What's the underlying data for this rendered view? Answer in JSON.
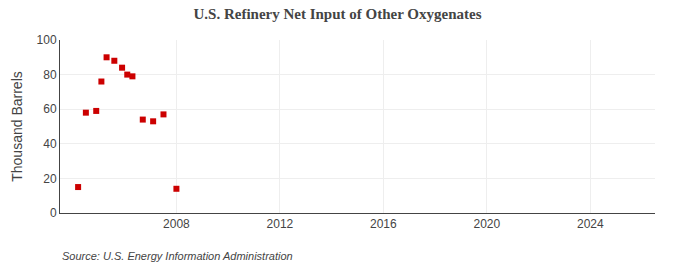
{
  "chart_data": {
    "type": "scatter",
    "title": "U.S. Refinery Net Input of Other Oxygenates",
    "ylabel": "Thousand Barrels",
    "annotations": [
      "Source: U.S. Energy Information Administration"
    ],
    "x": [
      2004.2,
      2004.5,
      2004.9,
      2005.1,
      2005.3,
      2005.6,
      2005.9,
      2006.1,
      2006.3,
      2006.7,
      2007.1,
      2007.5,
      2008.0
    ],
    "values": [
      15,
      58,
      59,
      76,
      90,
      88,
      84,
      80,
      79,
      54,
      53,
      57,
      14
    ],
    "color": "#cc0000",
    "marker": "square",
    "xlim": [
      2003.5,
      2026.5
    ],
    "xticks": [
      2008,
      2012,
      2016,
      2020,
      2024
    ],
    "ylim": [
      0,
      100
    ],
    "yticks": [
      0,
      20,
      40,
      60,
      80,
      100
    ],
    "grid": true
  }
}
